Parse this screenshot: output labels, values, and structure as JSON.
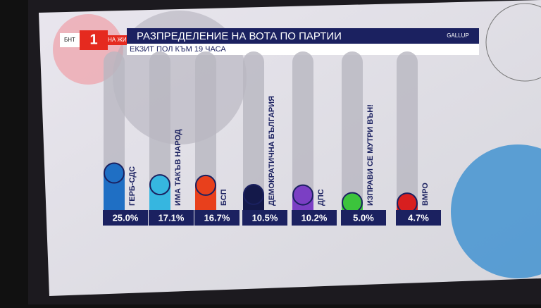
{
  "overlay": {
    "channel": "БНТ",
    "number": "1",
    "live": "НА ЖИВО",
    "source": "GALLUP"
  },
  "chart_data": {
    "type": "bar",
    "title": "РАЗПРЕДЕЛЕНИЕ НА ВОТА ПО ПАРТИИ",
    "subtitle": "ЕКЗИТ ПОЛ КЪМ 19 ЧАСА",
    "categories": [
      "ГЕРБ-СДС",
      "ИМА ТАКЪВ НАРОД",
      "БСП",
      "ДЕМОКРАТИЧНА БЪЛГАРИЯ",
      "ДПС",
      "ИЗПРАВИ СЕ МУТРИ ВЪН!",
      "ВМРО"
    ],
    "values": [
      25.0,
      17.1,
      16.7,
      10.5,
      10.2,
      5.0,
      4.7
    ],
    "value_labels": [
      "25.0%",
      "17.1%",
      "16.7%",
      "10.5%",
      "10.2%",
      "5.0%",
      "4.7%"
    ],
    "colors": [
      "#1f6fc4",
      "#36b6e0",
      "#e8401c",
      "#14194a",
      "#7b3fc4",
      "#3cc43c",
      "#d81f1f"
    ],
    "ylim": [
      0,
      100
    ]
  }
}
